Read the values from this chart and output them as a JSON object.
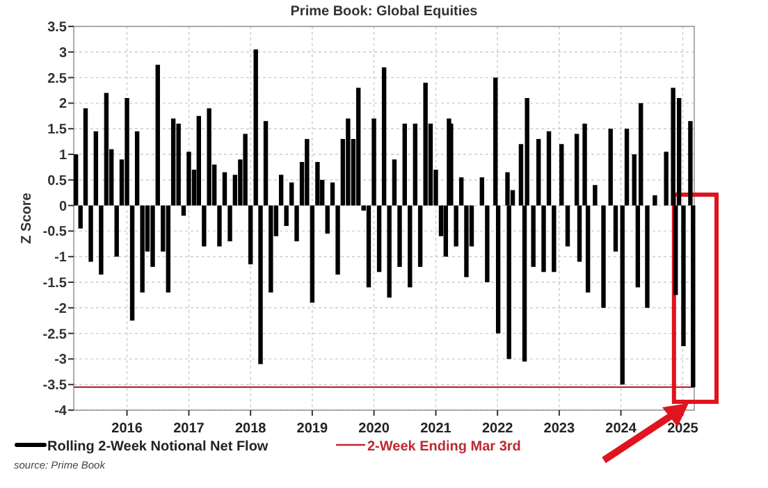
{
  "chart_data": {
    "type": "bar",
    "title": "Prime Book: Global Equities",
    "ylabel": "Z Score",
    "x": [
      "2015-03-05",
      "2015-04-01",
      "2015-05-01",
      "2015-06-01",
      "2015-07-01",
      "2015-08-01",
      "2015-09-01",
      "2015-10-01",
      "2015-11-01",
      "2015-12-01",
      "2016-01-01",
      "2016-02-01",
      "2016-03-01",
      "2016-04-01",
      "2016-05-01",
      "2016-06-01",
      "2016-07-01",
      "2016-08-01",
      "2016-09-01",
      "2016-10-01",
      "2016-11-01",
      "2016-12-01",
      "2017-01-01",
      "2017-02-01",
      "2017-03-01",
      "2017-04-01",
      "2017-05-01",
      "2017-06-01",
      "2017-07-01",
      "2017-08-01",
      "2017-09-01",
      "2017-10-01",
      "2017-11-01",
      "2017-12-01",
      "2018-01-01",
      "2018-02-01",
      "2018-03-01",
      "2018-04-01",
      "2018-05-01",
      "2018-06-01",
      "2018-07-01",
      "2018-08-01",
      "2018-09-01",
      "2018-10-01",
      "2018-11-01",
      "2018-12-01",
      "2019-01-01",
      "2019-02-01",
      "2019-03-01",
      "2019-04-01",
      "2019-05-01",
      "2019-06-01",
      "2019-07-01",
      "2019-08-01",
      "2019-09-01",
      "2019-10-01",
      "2019-11-01",
      "2019-12-01",
      "2020-01-01",
      "2020-02-01",
      "2020-03-01",
      "2020-04-01",
      "2020-05-01",
      "2020-06-01",
      "2020-07-01",
      "2020-08-01",
      "2020-09-01",
      "2020-10-01",
      "2020-11-01",
      "2020-12-01",
      "2021-01-01",
      "2021-02-01",
      "2021-03-01",
      "2021-03-20",
      "2021-04-01",
      "2021-05-01",
      "2021-06-01",
      "2021-07-01",
      "2021-08-01",
      "2021-10-01",
      "2021-11-01",
      "2021-12-20",
      "2022-01-05",
      "2022-03-01",
      "2022-03-10",
      "2022-04-01",
      "2022-05-20",
      "2022-06-10",
      "2022-06-25",
      "2022-08-01",
      "2022-09-01",
      "2022-10-01",
      "2022-11-01",
      "2022-12-01",
      "2023-01-15",
      "2023-02-20",
      "2023-04-15",
      "2023-05-01",
      "2023-06-01",
      "2023-06-20",
      "2023-08-01",
      "2023-09-20",
      "2023-11-01",
      "2023-12-01",
      "2024-01-10",
      "2024-02-05",
      "2024-03-20",
      "2024-04-10",
      "2024-04-28",
      "2024-06-05",
      "2024-07-20",
      "2024-09-25",
      "2024-11-05",
      "2024-11-20",
      "2024-12-10",
      "2025-01-05",
      "2025-02-15",
      "2025-03-03"
    ],
    "series": [
      {
        "name": "Rolling 2-Week Notional Net Flow",
        "color": "#000000",
        "values": [
          1.0,
          -0.45,
          1.9,
          -1.1,
          1.45,
          -1.35,
          2.2,
          1.1,
          -1.0,
          0.9,
          2.1,
          -2.25,
          1.45,
          -1.7,
          -0.9,
          -1.2,
          2.75,
          -0.9,
          -1.7,
          1.7,
          1.6,
          -0.2,
          1.05,
          0.7,
          1.75,
          -0.8,
          1.9,
          0.8,
          -0.8,
          0.65,
          -0.7,
          0.6,
          0.9,
          1.4,
          -1.15,
          3.05,
          -3.1,
          1.65,
          -1.7,
          -0.6,
          0.6,
          -0.4,
          0.45,
          -0.7,
          0.85,
          1.3,
          -1.9,
          0.85,
          0.5,
          -0.55,
          0.45,
          -1.35,
          1.3,
          1.7,
          1.3,
          2.3,
          -0.1,
          -1.6,
          1.7,
          -1.3,
          2.7,
          -1.8,
          0.9,
          -1.2,
          1.6,
          -1.6,
          1.6,
          -1.2,
          2.4,
          1.6,
          0.7,
          -0.6,
          -1.0,
          1.7,
          1.6,
          -0.8,
          0.55,
          -1.4,
          -0.8,
          0.55,
          -1.5,
          2.5,
          -2.5,
          0.65,
          -3.0,
          0.3,
          1.2,
          -3.05,
          2.1,
          -1.2,
          1.3,
          -1.3,
          1.45,
          -1.3,
          1.2,
          -0.8,
          1.4,
          -1.1,
          1.6,
          -1.7,
          0.4,
          -2.0,
          1.5,
          -0.9,
          -3.5,
          1.5,
          1.0,
          -1.6,
          2.0,
          -2.0,
          0.2,
          1.05,
          2.3,
          -1.75,
          2.1,
          -2.75,
          1.65,
          -3.55
        ]
      }
    ],
    "xlim": [
      "2015-02-20",
      "2025-03-10"
    ],
    "xticks": [
      {
        "value": "2016-01-01",
        "label": "2016"
      },
      {
        "value": "2017-01-01",
        "label": "2017"
      },
      {
        "value": "2018-01-01",
        "label": "2018"
      },
      {
        "value": "2019-01-01",
        "label": "2019"
      },
      {
        "value": "2020-01-01",
        "label": "2020"
      },
      {
        "value": "2021-01-01",
        "label": "2021"
      },
      {
        "value": "2022-01-01",
        "label": "2022"
      },
      {
        "value": "2023-01-01",
        "label": "2023"
      },
      {
        "value": "2024-01-01",
        "label": "2024"
      },
      {
        "value": "2025-01-01",
        "label": "2025"
      }
    ],
    "ylim": [
      -4,
      3.5
    ],
    "yticks": [
      -4,
      -3.5,
      -3,
      -2.5,
      -2,
      -1.5,
      -1,
      -0.5,
      0,
      0.5,
      1,
      1.5,
      2,
      2.5,
      3,
      3.5
    ],
    "ref_lines": [
      {
        "axis": "y",
        "value": -3.55,
        "label": "2-Week Ending Mar 3rd",
        "color": "#c0272d"
      }
    ],
    "grid": true,
    "legend": "bottom",
    "annotations": [
      "source: Prime Book"
    ]
  }
}
